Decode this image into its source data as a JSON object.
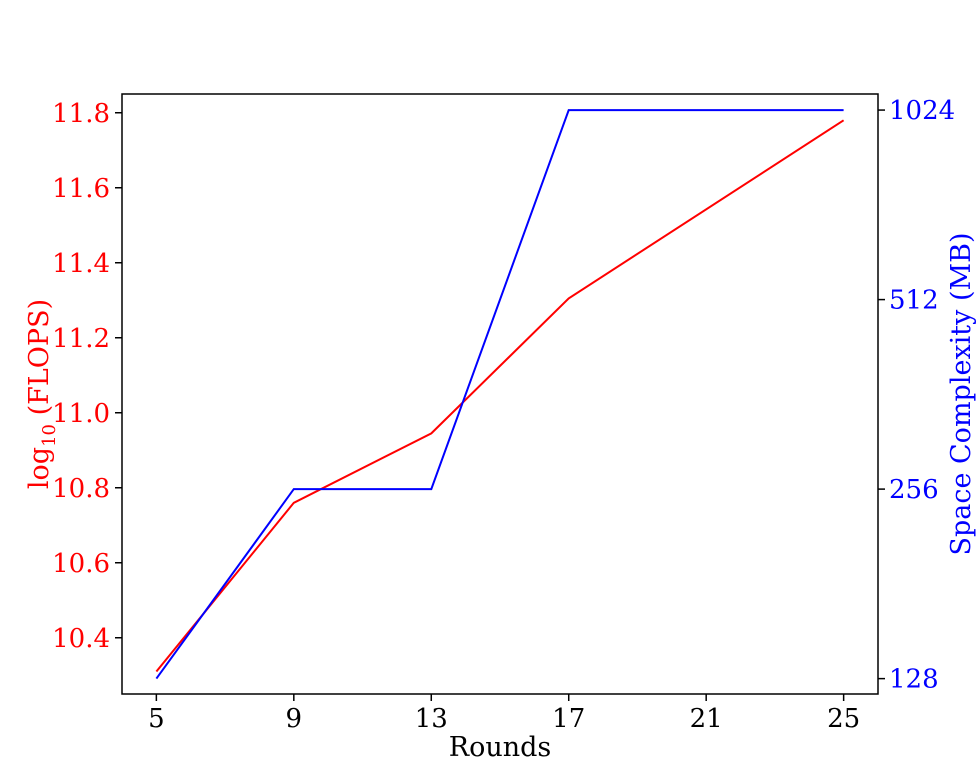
{
  "chart_data": {
    "type": "line",
    "xlabel": "Rounds",
    "ylabel_left_base": "log",
    "ylabel_left_sub": "10",
    "ylabel_left_rest": " (FLOPS)",
    "ylabel_right": "Space Complexity (MB)",
    "x": [
      5,
      9,
      13,
      17,
      21,
      25
    ],
    "x_ticks": [
      "5",
      "9",
      "13",
      "17",
      "21",
      "25"
    ],
    "xlim": [
      4,
      26
    ],
    "left_axis": {
      "ylim": [
        10.25,
        11.85
      ],
      "ticks": [
        10.4,
        10.6,
        10.8,
        11.0,
        11.2,
        11.4,
        11.6,
        11.8
      ],
      "tick_labels": [
        "10.4",
        "10.6",
        "10.8",
        "11.0",
        "11.2",
        "11.4",
        "11.6",
        "11.8"
      ],
      "color": "#ff0000"
    },
    "right_axis": {
      "scale": "log2",
      "ylim": [
        121,
        1086
      ],
      "ticks": [
        128,
        256,
        512,
        1024
      ],
      "tick_labels": [
        "128",
        "256",
        "512",
        "1024"
      ],
      "color": "#0000ff"
    },
    "series": [
      {
        "axis": "left",
        "color": "#ff0000",
        "x": [
          5,
          9,
          13,
          17,
          25
        ],
        "values": [
          10.31,
          10.76,
          10.945,
          11.305,
          11.78
        ]
      },
      {
        "axis": "right",
        "color": "#0000ff",
        "x": [
          5,
          9,
          13,
          17,
          25
        ],
        "values": [
          128,
          256,
          256,
          1024,
          1024
        ]
      }
    ]
  }
}
